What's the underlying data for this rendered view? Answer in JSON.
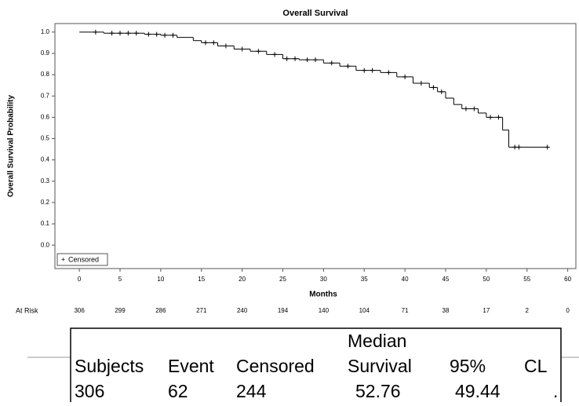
{
  "chart_data": {
    "type": "km",
    "title": "Overall Survival",
    "x_label": "Months",
    "y_label": "Overall Survival Probability",
    "xlim": [
      -3,
      61
    ],
    "xticks": [
      0,
      5,
      10,
      15,
      20,
      25,
      30,
      35,
      40,
      45,
      50,
      55,
      60
    ],
    "ylim": [
      -0.11,
      1.04
    ],
    "yticks": [
      {
        "value": 0,
        "label": "0.0"
      },
      0.1,
      0.2,
      0.3,
      0.4,
      0.5,
      0.6,
      0.7,
      0.8,
      0.9,
      {
        "value": 1,
        "label": "1.0"
      }
    ],
    "series": [
      {
        "name": "Survival",
        "color": "#000000",
        "x": [
          0,
          3,
          8,
          10,
          12,
          14,
          15,
          17,
          19,
          21,
          23,
          25,
          27,
          30,
          32,
          34,
          37,
          39,
          41,
          43,
          44,
          45,
          46,
          47,
          49,
          50,
          52,
          52.76,
          57.5
        ],
        "values": [
          1.0,
          0.995,
          0.99,
          0.985,
          0.975,
          0.96,
          0.95,
          0.935,
          0.92,
          0.91,
          0.895,
          0.875,
          0.87,
          0.855,
          0.84,
          0.82,
          0.81,
          0.79,
          0.76,
          0.74,
          0.72,
          0.69,
          0.66,
          0.64,
          0.62,
          0.6,
          0.54,
          0.46,
          0.46
        ]
      },
      {
        "name": "Censored",
        "color": "#000000",
        "x": [
          2,
          4,
          5,
          6,
          7,
          8.5,
          9.5,
          10.5,
          11.5,
          15.5,
          16.5,
          18,
          20,
          22,
          24,
          25.5,
          26.5,
          28,
          29,
          31,
          33,
          35,
          36,
          38,
          40,
          42,
          43.5,
          44.5,
          47.5,
          48.5,
          50.5,
          51.5,
          53.5,
          54,
          57.5
        ],
        "values": [
          1.0,
          0.995,
          0.995,
          0.995,
          0.995,
          0.99,
          0.99,
          0.985,
          0.985,
          0.95,
          0.95,
          0.935,
          0.92,
          0.91,
          0.895,
          0.875,
          0.875,
          0.87,
          0.87,
          0.855,
          0.84,
          0.82,
          0.82,
          0.81,
          0.79,
          0.76,
          0.74,
          0.72,
          0.64,
          0.64,
          0.6,
          0.6,
          0.46,
          0.46,
          0.46
        ]
      }
    ],
    "at_risk": {
      "label": "At Risk",
      "values": [
        306,
        299,
        286,
        271,
        240,
        194,
        140,
        104,
        71,
        38,
        17,
        2,
        0
      ]
    }
  },
  "table": {
    "header_above": "Median",
    "columns": [
      "Subjects",
      "Event",
      "Censored",
      "Survival",
      "95%",
      "CL"
    ],
    "rows": [
      [
        306,
        62,
        244,
        52.76,
        49.44,
        "."
      ]
    ]
  }
}
